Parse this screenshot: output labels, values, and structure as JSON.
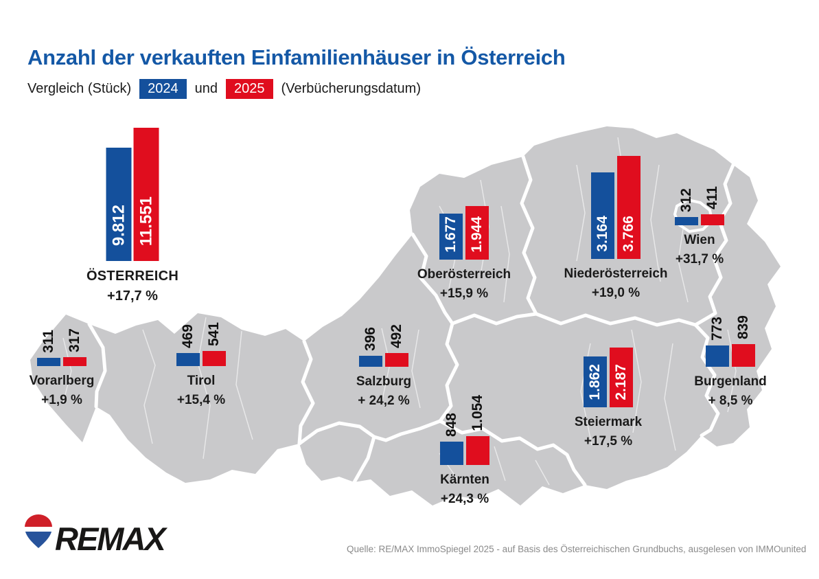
{
  "title": "Anzahl der verkauften Einfamilienhäuser in Österreich",
  "subtitle": {
    "prefix": "Vergleich (Stück)",
    "year1": "2024",
    "conjunction": "und",
    "year2": "2025",
    "suffix": "(Verbücherungsdatum)"
  },
  "colors": {
    "bar_blue": "#14509C",
    "bar_red": "#E00D1E",
    "title_blue": "#1458A6",
    "map_gray": "#C9C9CB"
  },
  "austria": {
    "name": "ÖSTERREICH",
    "d2024": "9.812",
    "d2025": "11.551",
    "n2024": 9812,
    "n2025": 11551,
    "change": "+17,7 %"
  },
  "regions": [
    {
      "name": "Vorarlberg",
      "d2024": "311",
      "d2025": "317",
      "n2024": 311,
      "n2025": 317,
      "change": "+1,9 %"
    },
    {
      "name": "Tirol",
      "d2024": "469",
      "d2025": "541",
      "n2024": 469,
      "n2025": 541,
      "change": "+15,4 %"
    },
    {
      "name": "Salzburg",
      "d2024": "396",
      "d2025": "492",
      "n2024": 396,
      "n2025": 492,
      "change": "+ 24,2 %"
    },
    {
      "name": "Oberösterreich",
      "d2024": "1.677",
      "d2025": "1.944",
      "n2024": 1677,
      "n2025": 1944,
      "change": "+15,9 %"
    },
    {
      "name": "Niederösterreich",
      "d2024": "3.164",
      "d2025": "3.766",
      "n2024": 3164,
      "n2025": 3766,
      "change": "+19,0 %"
    },
    {
      "name": "Wien",
      "d2024": "312",
      "d2025": "411",
      "n2024": 312,
      "n2025": 411,
      "change": "+31,7 %"
    },
    {
      "name": "Burgenland",
      "d2024": "773",
      "d2025": "839",
      "n2024": 773,
      "n2025": 839,
      "change": "+ 8,5 %"
    },
    {
      "name": "Steiermark",
      "d2024": "1.862",
      "d2025": "2.187",
      "n2024": 1862,
      "n2025": 2187,
      "change": "+17,5 %"
    },
    {
      "name": "Kärnten",
      "d2024": "848",
      "d2025": "1.054",
      "n2024": 848,
      "n2025": 1054,
      "change": "+24,3 %"
    }
  ],
  "footer": {
    "logo_text": "REMAX",
    "source": "Quelle: RE/MAX ImmoSpiegel 2025 - auf Basis des Österreichischen Grundbuchs, ausgelesen von IMMOunited"
  },
  "chart_data": {
    "type": "bar",
    "title": "Anzahl der verkauften Einfamilienhäuser in Österreich",
    "subtitle": "Vergleich (Stück) 2024 und 2025 (Verbücherungsdatum)",
    "layout": "bars overlaid on Austria map, one pair per federal state",
    "legend_position": "subtitle badges (blue=2024, red=2025)",
    "categories": [
      "ÖSTERREICH",
      "Vorarlberg",
      "Tirol",
      "Salzburg",
      "Oberösterreich",
      "Niederösterreich",
      "Wien",
      "Burgenland",
      "Steiermark",
      "Kärnten"
    ],
    "series": [
      {
        "name": "2024",
        "color": "#14509C",
        "values": [
          9812,
          311,
          469,
          396,
          1677,
          3164,
          312,
          773,
          1862,
          848
        ]
      },
      {
        "name": "2025",
        "color": "#E00D1E",
        "values": [
          11551,
          317,
          541,
          492,
          1944,
          3766,
          411,
          839,
          2187,
          1054
        ]
      }
    ],
    "change_labels": [
      "+17,7 %",
      "+1,9 %",
      "+15,4 %",
      "+ 24,2 %",
      "+15,9 %",
      "+19,0 %",
      "+31,7 %",
      "+ 8,5 %",
      "+17,5 %",
      "+24,3 %"
    ]
  }
}
